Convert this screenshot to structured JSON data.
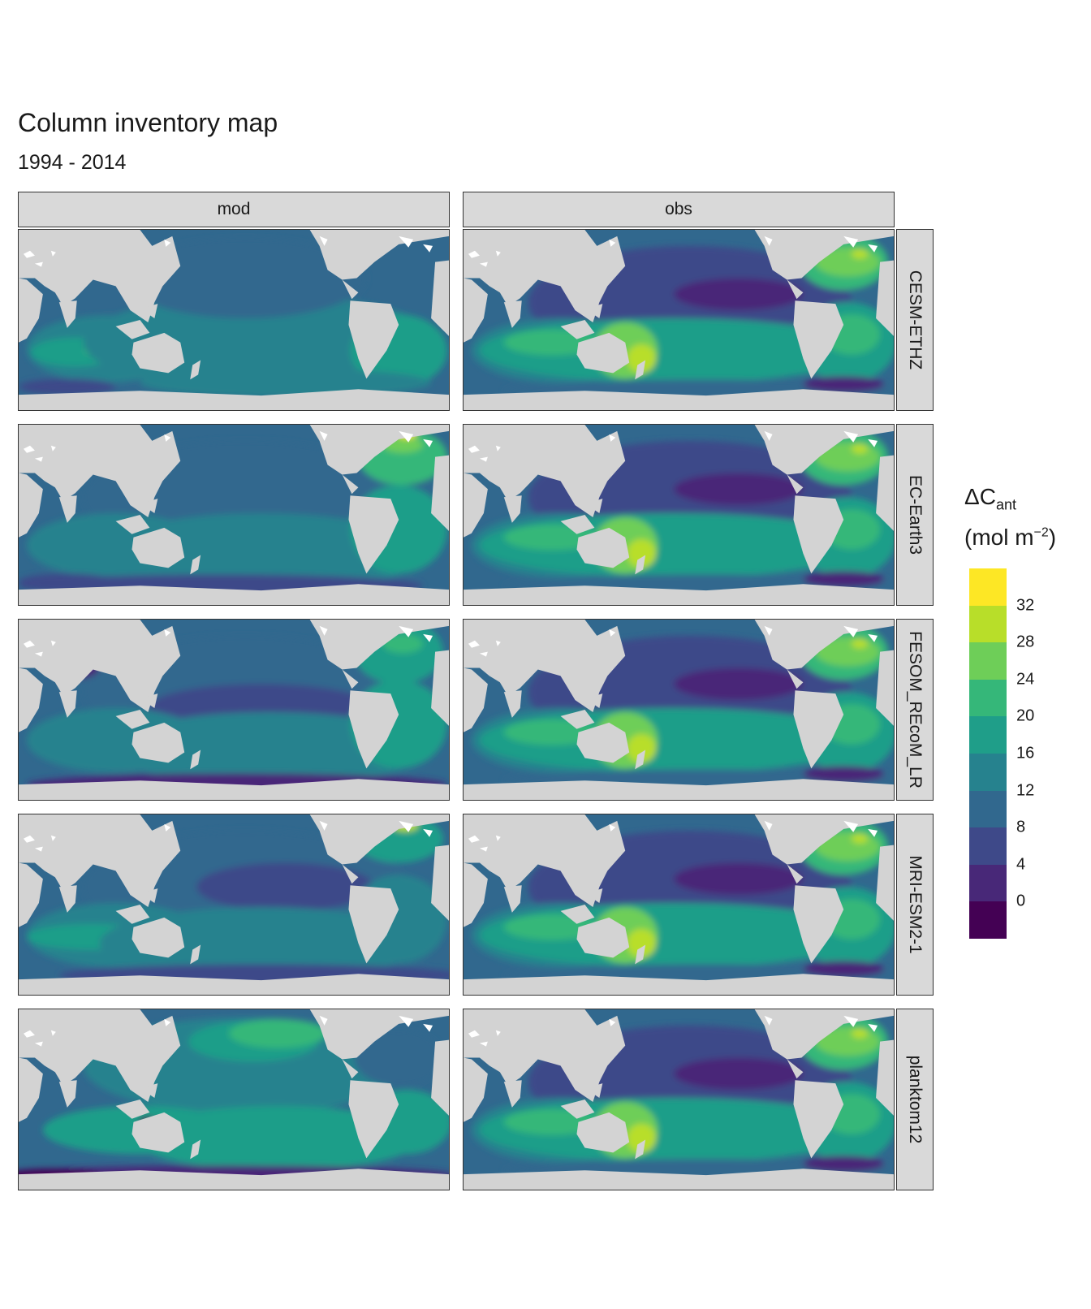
{
  "title": "Column inventory map",
  "subtitle": "1994 - 2014",
  "columns": [
    "mod",
    "obs"
  ],
  "rows": [
    "CESM-ETHZ",
    "EC-Earth3",
    "FESOM_REcoM_LR",
    "MRI-ESM2-1",
    "planktom12"
  ],
  "legend": {
    "symbol": "ΔC",
    "symbol_sub": "ant",
    "unit_open": "(mol m",
    "unit_sup": "−2",
    "unit_close": ")",
    "ticks": [
      "32",
      "28",
      "24",
      "20",
      "16",
      "12",
      "8",
      "4",
      "0"
    ],
    "colors": [
      "#fde725",
      "#b8de29",
      "#6ece58",
      "#35b779",
      "#1f9e89",
      "#26828e",
      "#31688e",
      "#3e4989",
      "#482878",
      "#440154"
    ]
  },
  "colors": {
    "land": "#d3d3d3",
    "ice": "#ffffff",
    "strip": "#d9d9d9"
  }
}
